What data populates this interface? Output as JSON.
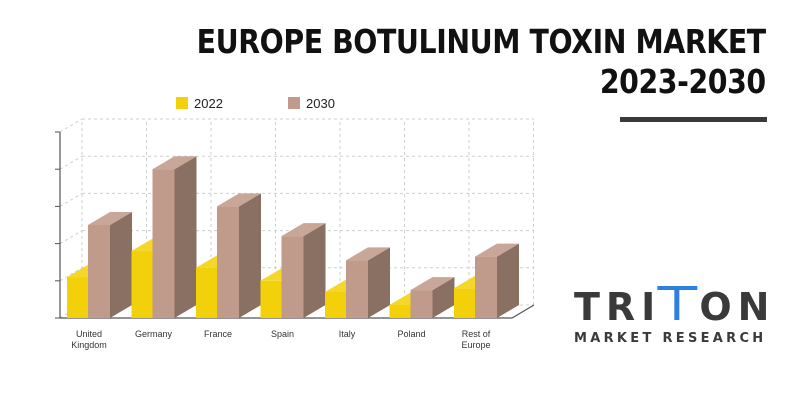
{
  "header": {
    "title_line1": "EUROPE BOTULINUM TOXIN MARKET",
    "title_line2": "2023-2030"
  },
  "brand": {
    "name_part1": "TRI",
    "name_part2": "ON",
    "tagline": "MARKET RESEARCH",
    "accent_color": "#2f7fe0",
    "text_color": "#3a3a3a"
  },
  "chart_data": {
    "type": "bar",
    "title": "",
    "xlabel": "",
    "ylabel": "",
    "ylim": [
      0,
      5
    ],
    "grid": true,
    "three_d": true,
    "legend_position": "top-left",
    "categories": [
      [
        "United",
        "Kingdom"
      ],
      [
        "Germany"
      ],
      [
        "France"
      ],
      [
        "Spain"
      ],
      [
        "Italy"
      ],
      [
        "Poland"
      ],
      [
        "Rest of",
        "Europe"
      ]
    ],
    "series": [
      {
        "name": "2022",
        "color": "#f2d10b",
        "values": [
          1.1,
          1.8,
          1.35,
          1.0,
          0.7,
          0.35,
          0.8
        ]
      },
      {
        "name": "2030",
        "color": "#c09a8a",
        "values": [
          2.5,
          4.0,
          3.0,
          2.2,
          1.55,
          0.75,
          1.65
        ]
      }
    ]
  }
}
